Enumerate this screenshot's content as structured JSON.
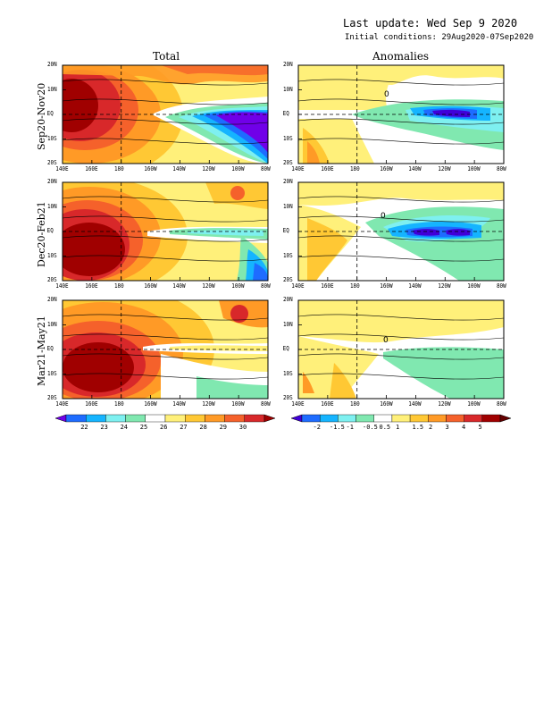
{
  "header": {
    "update_line": "Last update: Wed Sep  9 2020",
    "ic_line": "Initial conditions: 29Aug2020-07Sep2020"
  },
  "columns": {
    "total": "Total",
    "anomalies": "Anomalies"
  },
  "rows": [
    "Sep20-Nov20",
    "Dec20-Feb21",
    "Mar21-May21"
  ],
  "axes": {
    "lat_ticks": [
      "20N",
      "10N",
      "EQ",
      "10S",
      "20S"
    ],
    "lon_ticks": [
      "140E",
      "160E",
      "180",
      "160W",
      "140W",
      "120W",
      "100W",
      "80W"
    ]
  },
  "colorbars": {
    "total": {
      "labels": [
        "22",
        "23",
        "24",
        "25",
        "26",
        "27",
        "28",
        "29",
        "30"
      ],
      "colors": [
        "#7000e8",
        "#1e6cff",
        "#15b4ff",
        "#7ef0f0",
        "#80e8b0",
        "#ffffff",
        "#fff07a",
        "#ffc834",
        "#ff9a26",
        "#f5612b",
        "#d8282a",
        "#a00000"
      ]
    },
    "anomalies": {
      "labels": [
        "-2",
        "-1.5",
        "-1",
        "-0.5",
        "0.5",
        "1",
        "1.5",
        "2",
        "3",
        "4",
        "5"
      ],
      "colors": [
        "#4000d8",
        "#1e6cff",
        "#15b4ff",
        "#7ef0f0",
        "#80e8b0",
        "#ffffff",
        "#fff07a",
        "#ffc834",
        "#ff9a26",
        "#f5612b",
        "#d8282a",
        "#a00000",
        "#640000"
      ]
    }
  },
  "contour_labels": {
    "zero": "0"
  }
}
